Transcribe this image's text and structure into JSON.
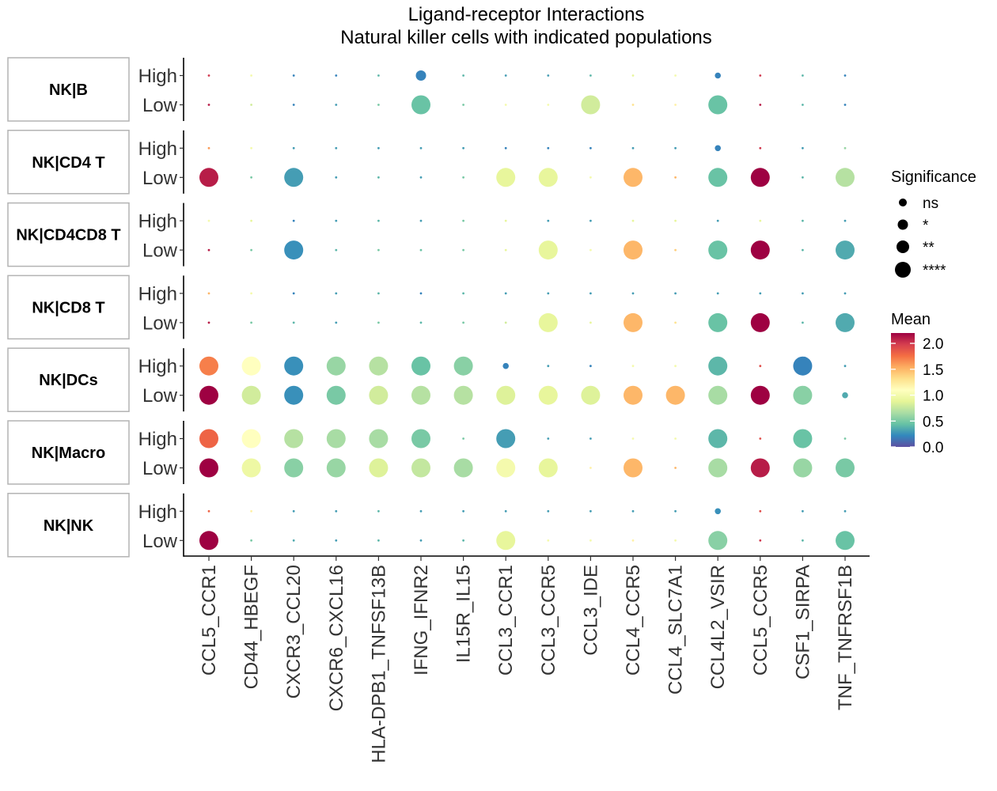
{
  "chart_data": {
    "type": "scatter",
    "title_line1": "Ligand-receptor Interactions",
    "title_line2": "Natural killer cells with indicated populations",
    "columns": [
      "CCL5_CCR1",
      "CD44_HBEGF",
      "CXCR3_CCL20",
      "CXCR6_CXCL16",
      "HLA-DPB1_TNFSF13B",
      "IFNG_IFNR2",
      "IL15R_IL15",
      "CCL3_CCR1",
      "CCL3_CCR5",
      "CCL3_IDE",
      "CCL4_CCR5",
      "CCL4_SLC7A1",
      "CCL4L2_VSIR",
      "CCL5_CCR5",
      "CSF1_SIRPA",
      "TNF_TNFRSF1B"
    ],
    "row_levels": [
      "High",
      "Low"
    ],
    "facets": [
      {
        "name": "NK|B",
        "High": {
          "mean": [
            2.0,
            1.0,
            0.2,
            0.2,
            0.4,
            0.2,
            0.4,
            0.3,
            0.3,
            0.4,
            0.9,
            1.0,
            0.2,
            2.0,
            0.4,
            0.2
          ],
          "sig": [
            "ns",
            "ns",
            "ns",
            "ns",
            "ns",
            "**",
            "ns",
            "ns",
            "ns",
            "ns",
            "ns",
            "ns",
            "*",
            "ns",
            "ns",
            "ns"
          ]
        },
        "Low": {
          "mean": [
            2.1,
            0.8,
            0.2,
            0.3,
            0.5,
            0.45,
            0.5,
            1.0,
            1.0,
            0.8,
            1.3,
            1.2,
            0.45,
            2.1,
            0.4,
            0.2
          ],
          "sig": [
            "ns",
            "ns",
            "ns",
            "ns",
            "ns",
            "****",
            "ns",
            "ns",
            "ns",
            "****",
            "ns",
            "ns",
            "****",
            "ns",
            "ns",
            "ns"
          ]
        }
      },
      {
        "name": "NK|CD4 T",
        "High": {
          "mean": [
            1.6,
            1.0,
            0.3,
            0.3,
            0.3,
            0.3,
            0.3,
            0.2,
            0.2,
            0.2,
            0.3,
            0.3,
            0.2,
            2.0,
            0.3,
            0.6
          ],
          "sig": [
            "ns",
            "ns",
            "ns",
            "ns",
            "ns",
            "ns",
            "ns",
            "ns",
            "ns",
            "ns",
            "ns",
            "ns",
            "*",
            "ns",
            "ns",
            "ns"
          ]
        },
        "Low": {
          "mean": [
            2.1,
            0.5,
            0.3,
            0.3,
            0.4,
            0.3,
            0.5,
            0.9,
            0.9,
            1.0,
            1.5,
            1.5,
            0.45,
            2.2,
            0.4,
            0.7
          ],
          "sig": [
            "****",
            "ns",
            "****",
            "ns",
            "ns",
            "ns",
            "ns",
            "****",
            "****",
            "ns",
            "****",
            "ns",
            "****",
            "****",
            "ns",
            "****"
          ]
        }
      },
      {
        "name": "NK|CD4CD8 T",
        "High": {
          "mean": [
            1.0,
            0.9,
            0.2,
            0.3,
            0.4,
            0.3,
            0.5,
            0.9,
            0.3,
            0.3,
            0.9,
            0.9,
            0.3,
            0.9,
            0.4,
            0.3
          ],
          "sig": [
            "ns",
            "ns",
            "ns",
            "ns",
            "ns",
            "ns",
            "ns",
            "ns",
            "ns",
            "ns",
            "ns",
            "ns",
            "ns",
            "ns",
            "ns",
            "ns"
          ]
        },
        "Low": {
          "mean": [
            2.1,
            0.5,
            0.25,
            0.4,
            0.5,
            0.45,
            0.5,
            0.9,
            0.9,
            1.0,
            1.5,
            1.4,
            0.45,
            2.2,
            0.4,
            0.35
          ],
          "sig": [
            "ns",
            "ns",
            "****",
            "ns",
            "ns",
            "ns",
            "ns",
            "ns",
            "****",
            "ns",
            "****",
            "ns",
            "****",
            "****",
            "ns",
            "****"
          ]
        }
      },
      {
        "name": "NK|CD8 T",
        "High": {
          "mean": [
            1.5,
            1.0,
            0.2,
            0.3,
            0.4,
            0.2,
            0.4,
            0.3,
            0.3,
            0.3,
            0.3,
            0.3,
            0.3,
            0.3,
            0.3,
            0.3
          ],
          "sig": [
            "ns",
            "ns",
            "ns",
            "ns",
            "ns",
            "ns",
            "ns",
            "ns",
            "ns",
            "ns",
            "ns",
            "ns",
            "ns",
            "ns",
            "ns",
            "ns"
          ]
        },
        "Low": {
          "mean": [
            2.1,
            0.5,
            0.4,
            0.3,
            0.5,
            0.4,
            0.5,
            0.8,
            0.9,
            0.9,
            1.5,
            1.3,
            0.45,
            2.2,
            0.4,
            0.35
          ],
          "sig": [
            "ns",
            "ns",
            "ns",
            "ns",
            "ns",
            "ns",
            "ns",
            "ns",
            "****",
            "ns",
            "****",
            "ns",
            "****",
            "****",
            "ns",
            "****"
          ]
        }
      },
      {
        "name": "NK|DCs",
        "High": {
          "mean": [
            1.7,
            1.1,
            0.25,
            0.6,
            0.7,
            0.45,
            0.55,
            0.2,
            0.3,
            0.2,
            1.0,
            1.0,
            0.4,
            1.9,
            0.2,
            0.3
          ],
          "sig": [
            "****",
            "****",
            "****",
            "****",
            "****",
            "****",
            "****",
            "*",
            "ns",
            "ns",
            "ns",
            "ns",
            "****",
            "ns",
            "****",
            "ns"
          ]
        },
        "Low": {
          "mean": [
            2.2,
            0.8,
            0.25,
            0.5,
            0.8,
            0.7,
            0.7,
            0.85,
            0.9,
            0.85,
            1.5,
            1.5,
            0.65,
            2.2,
            0.55,
            0.35
          ],
          "sig": [
            "****",
            "****",
            "****",
            "****",
            "****",
            "****",
            "****",
            "****",
            "****",
            "****",
            "****",
            "****",
            "****",
            "****",
            "****",
            "*"
          ]
        }
      },
      {
        "name": "NK|Macro",
        "High": {
          "mean": [
            1.8,
            1.1,
            0.7,
            0.65,
            0.65,
            0.5,
            0.5,
            0.3,
            0.3,
            0.3,
            1.0,
            1.0,
            0.4,
            1.9,
            0.45,
            0.5
          ],
          "sig": [
            "****",
            "****",
            "****",
            "****",
            "****",
            "****",
            "ns",
            "****",
            "ns",
            "ns",
            "ns",
            "ns",
            "****",
            "ns",
            "****",
            "ns"
          ]
        },
        "Low": {
          "mean": [
            2.2,
            0.95,
            0.55,
            0.6,
            0.85,
            0.75,
            0.65,
            1.0,
            0.9,
            1.2,
            1.5,
            1.5,
            0.65,
            2.1,
            0.6,
            0.5
          ],
          "sig": [
            "****",
            "****",
            "****",
            "****",
            "****",
            "****",
            "****",
            "****",
            "****",
            "ns",
            "****",
            "ns",
            "****",
            "****",
            "****",
            "****"
          ]
        }
      },
      {
        "name": "NK|NK",
        "High": {
          "mean": [
            1.8,
            1.2,
            0.3,
            0.3,
            0.4,
            0.3,
            0.3,
            0.3,
            0.3,
            0.3,
            0.3,
            0.3,
            0.25,
            1.9,
            0.3,
            0.3
          ],
          "sig": [
            "ns",
            "ns",
            "ns",
            "ns",
            "ns",
            "ns",
            "ns",
            "ns",
            "ns",
            "ns",
            "ns",
            "ns",
            "*",
            "ns",
            "ns",
            "ns"
          ]
        },
        "Low": {
          "mean": [
            2.2,
            0.5,
            0.35,
            0.3,
            0.4,
            0.3,
            0.4,
            0.9,
            1.0,
            1.0,
            1.2,
            1.0,
            0.55,
            2.0,
            0.4,
            0.45
          ],
          "sig": [
            "****",
            "ns",
            "ns",
            "ns",
            "ns",
            "ns",
            "ns",
            "****",
            "ns",
            "ns",
            "ns",
            "ns",
            "****",
            "ns",
            "ns",
            "****"
          ]
        }
      }
    ],
    "legend_significance": {
      "title": "Significance",
      "levels": [
        "ns",
        "*",
        "**",
        "****"
      ]
    },
    "legend_mean": {
      "title": "Mean",
      "range": [
        0,
        2.2
      ],
      "ticks": [
        "2.0",
        "1.5",
        "1.0",
        "0.5",
        "0.0"
      ],
      "tick_values": [
        2.0,
        1.5,
        1.0,
        0.5,
        0.0
      ]
    },
    "colormap": [
      "#5e4fa2",
      "#3288bd",
      "#66c2a5",
      "#abdda4",
      "#e6f598",
      "#ffffbf",
      "#fee08b",
      "#fdae61",
      "#f46d43",
      "#d53e4f",
      "#9e0142"
    ]
  }
}
